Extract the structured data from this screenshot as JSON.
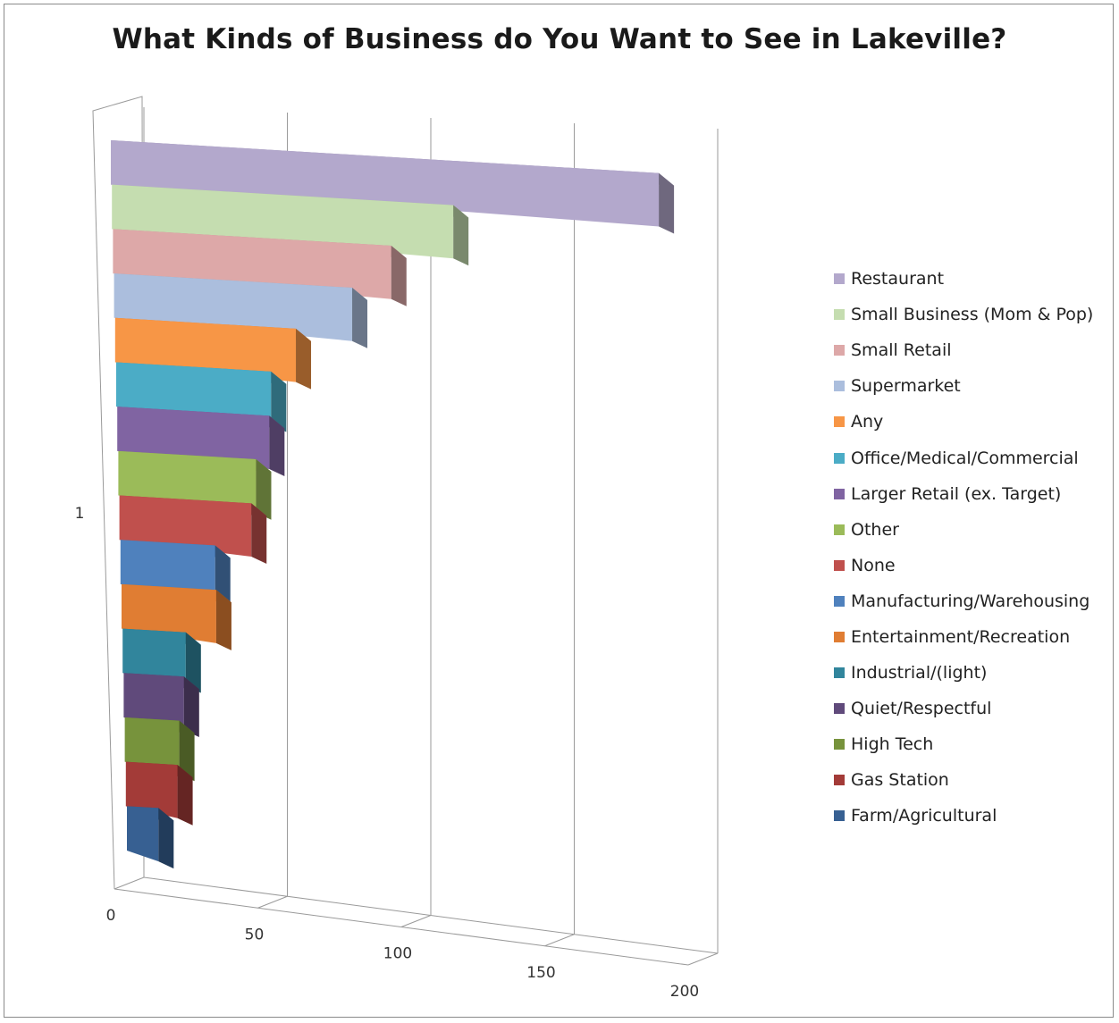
{
  "chart_data": {
    "type": "bar",
    "orientation": "horizontal",
    "style": "3d",
    "title": "What Kinds of Business do You Want to See in Lakeville?",
    "category_axis_label": "1",
    "xlim": [
      0,
      200
    ],
    "x_ticks": [
      "0",
      "50",
      "100",
      "150",
      "200"
    ],
    "grid": true,
    "legend_position": "right",
    "series": [
      {
        "name": "Restaurant",
        "value": 191,
        "color": "#B3A8CC"
      },
      {
        "name": "Small Business (Mom & Pop)",
        "value": 119,
        "color": "#C5DDB0"
      },
      {
        "name": "Small Retail",
        "value": 97,
        "color": "#DDA8A8"
      },
      {
        "name": "Supermarket",
        "value": 83,
        "color": "#ABBEDD"
      },
      {
        "name": "Any",
        "value": 63,
        "color": "#F79646"
      },
      {
        "name": "Office/Medical/Commercial",
        "value": 54,
        "color": "#4BACC6"
      },
      {
        "name": "Larger Retail (ex. Target)",
        "value": 53,
        "color": "#8064A2"
      },
      {
        "name": "Other",
        "value": 48,
        "color": "#9BBB59"
      },
      {
        "name": "None",
        "value": 46,
        "color": "#C0504D"
      },
      {
        "name": "Manufacturing/Warehousing",
        "value": 33,
        "color": "#4F81BD"
      },
      {
        "name": "Entertainment/Recreation",
        "value": 33,
        "color": "#E07D33"
      },
      {
        "name": "Industrial/(light)",
        "value": 22,
        "color": "#31859C"
      },
      {
        "name": "Quiet/Respectful",
        "value": 21,
        "color": "#604A7B"
      },
      {
        "name": "High Tech",
        "value": 19,
        "color": "#77933C"
      },
      {
        "name": "Gas Station",
        "value": 18,
        "color": "#A33B38"
      },
      {
        "name": "Farm/Agricultural",
        "value": 11,
        "color": "#376092"
      }
    ]
  }
}
